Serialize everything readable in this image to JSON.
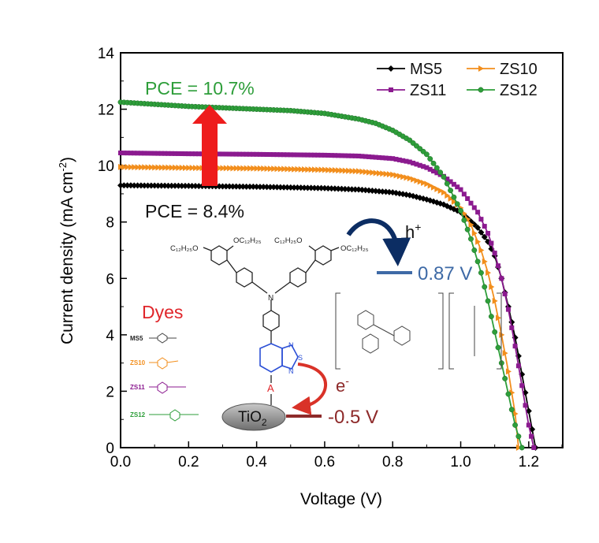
{
  "chart_data": {
    "type": "line",
    "xlabel": "Voltage (V)",
    "ylabel": "Current density (mA cm",
    "ylabel_sup": "-2",
    "ylabel_end": ")",
    "xlim": [
      0.0,
      1.3
    ],
    "ylim": [
      0,
      14
    ],
    "xticks": [
      0.0,
      0.2,
      0.4,
      0.6,
      0.8,
      1.0,
      1.2
    ],
    "yticks": [
      0,
      2,
      4,
      6,
      8,
      10,
      12,
      14
    ],
    "xtick_labels": [
      "0.0",
      "0.2",
      "0.4",
      "0.6",
      "0.8",
      "1.0",
      "1.2"
    ],
    "ytick_labels": [
      "0",
      "2",
      "4",
      "6",
      "8",
      "10",
      "12",
      "14"
    ],
    "grid": false,
    "legend_position": "top-right",
    "series": [
      {
        "name": "MS5",
        "color": "#000000",
        "marker": "diamond",
        "x": [
          0.0,
          0.2,
          0.4,
          0.6,
          0.7,
          0.8,
          0.85,
          0.9,
          0.95,
          1.0,
          1.05,
          1.08,
          1.1,
          1.12,
          1.14,
          1.16,
          1.18,
          1.2,
          1.22
        ],
        "y": [
          9.3,
          9.28,
          9.25,
          9.2,
          9.15,
          9.05,
          8.95,
          8.8,
          8.62,
          8.35,
          7.8,
          7.3,
          6.8,
          6.0,
          5.0,
          3.9,
          2.6,
          1.3,
          0.0
        ]
      },
      {
        "name": "ZS10",
        "color": "#f28e1c",
        "marker": "triangle",
        "x": [
          0.0,
          0.2,
          0.4,
          0.6,
          0.7,
          0.8,
          0.85,
          0.9,
          0.95,
          1.0,
          1.03,
          1.06,
          1.08,
          1.1,
          1.12,
          1.14,
          1.16,
          1.17
        ],
        "y": [
          9.95,
          9.92,
          9.9,
          9.85,
          9.8,
          9.68,
          9.55,
          9.35,
          9.05,
          8.5,
          7.9,
          7.0,
          6.2,
          5.2,
          4.0,
          2.7,
          1.2,
          0.0
        ]
      },
      {
        "name": "ZS11",
        "color": "#8b1a8f",
        "marker": "square",
        "x": [
          0.0,
          0.2,
          0.4,
          0.6,
          0.7,
          0.8,
          0.85,
          0.9,
          0.95,
          1.0,
          1.05,
          1.08,
          1.1,
          1.12,
          1.14,
          1.16,
          1.18,
          1.2,
          1.215
        ],
        "y": [
          10.45,
          10.42,
          10.4,
          10.37,
          10.34,
          10.25,
          10.13,
          9.93,
          9.62,
          9.15,
          8.35,
          7.6,
          6.9,
          6.0,
          4.9,
          3.6,
          2.2,
          0.8,
          0.0
        ]
      },
      {
        "name": "ZS12",
        "color": "#2e9e3a",
        "marker": "circle",
        "x": [
          0.0,
          0.2,
          0.4,
          0.5,
          0.6,
          0.7,
          0.75,
          0.8,
          0.85,
          0.9,
          0.95,
          1.0,
          1.03,
          1.06,
          1.08,
          1.1,
          1.12,
          1.14,
          1.16,
          1.18
        ],
        "y": [
          12.25,
          12.1,
          12.0,
          11.95,
          11.85,
          11.65,
          11.5,
          11.25,
          10.9,
          10.4,
          9.6,
          8.4,
          7.4,
          6.2,
          5.2,
          4.1,
          3.0,
          1.9,
          0.8,
          0.0
        ]
      }
    ],
    "annotations": {
      "pce_high": "PCE = 10.7%",
      "pce_low": "PCE = 8.4%",
      "dyes_label": "Dyes",
      "hole": "h",
      "hole_sup": "+",
      "hole_level": "0.87 V",
      "electron": "e",
      "electron_sup": "-",
      "electron_level": "-0.5 V",
      "tio2_main": "TiO",
      "tio2_sub": "2",
      "acceptor": "A",
      "dye_names": [
        "MS5",
        "ZS10",
        "ZS11",
        "ZS12"
      ],
      "substituent_left": "C₁₂H₂₅O",
      "substituent_right": "OC₁₂H₂₅",
      "amine_n": "N",
      "btd_n1": "N",
      "btd_s": "S",
      "btd_n2": "N"
    },
    "colors": {
      "pce_high": "#2e9e3a",
      "arrow": "#ee1c1c",
      "dyes": "#e0262b",
      "hole_level": "#3e6aa6",
      "hole_arrow": "#0c2d63",
      "electron_level": "#8e2a2a",
      "electron_arrow": "#d93228",
      "btd": "#2b4fd6"
    }
  }
}
